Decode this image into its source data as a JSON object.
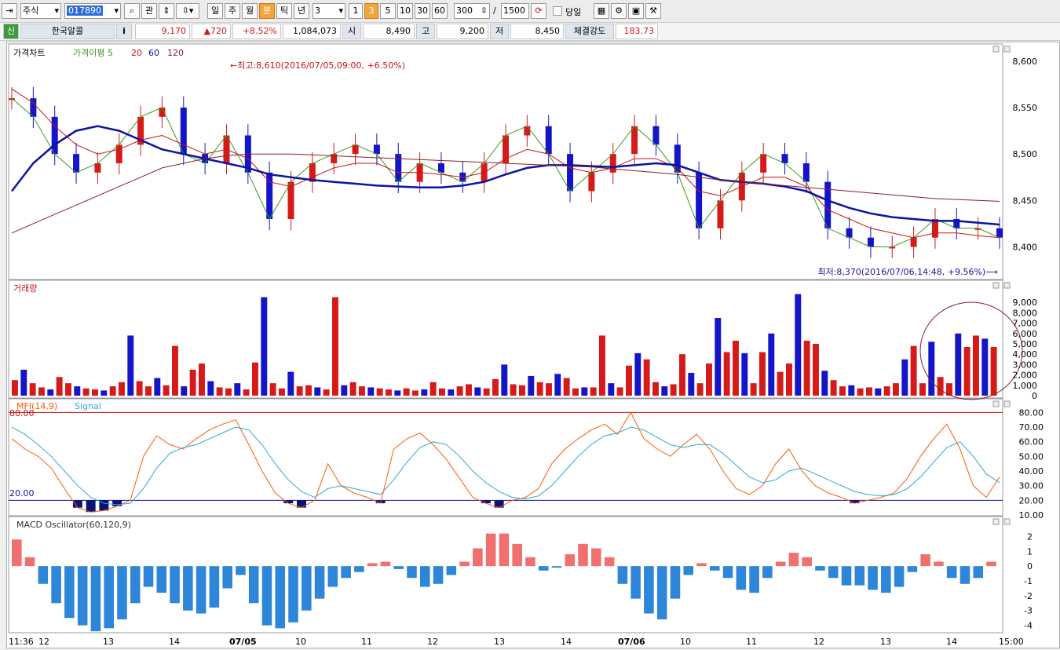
{
  "toolbar": {
    "market": "주식",
    "code": "017890",
    "btn_gwan": "관",
    "periods": [
      "일",
      "주",
      "월",
      "분",
      "틱",
      "년"
    ],
    "selected_period": "분",
    "interval_value": "3",
    "intervals": [
      "1",
      "3",
      "5",
      "10",
      "30",
      "60"
    ],
    "selected_interval": "3",
    "count_value": "300",
    "count_sep": "/",
    "count_max": "1500",
    "today_label": "당일"
  },
  "info": {
    "badge": "신",
    "name": "한국알콜",
    "i_button": "i",
    "price": "9,170",
    "change": "▲720",
    "change_pct": "+8.52%",
    "volume": "1,084,073",
    "open_label": "시",
    "open": "8,490",
    "high_label": "고",
    "high": "9,200",
    "low_label": "저",
    "low": "8,450",
    "strength_label": "체결강도",
    "strength": "183.73"
  },
  "price_panel": {
    "legend_title": "가격차트",
    "legend_ma5": "가격이평 5",
    "legend_ma20": "20",
    "legend_ma60": "60",
    "legend_ma120": "120",
    "high_annotation": "←최고:8,610(2016/07/05,09:00, +6.50%)",
    "low_annotation": "최저:8,370(2016/07/06,14:48, +9.56%)⟶",
    "y_ticks": [
      "8,600",
      "8,550",
      "8,500",
      "8,450",
      "8,400"
    ]
  },
  "volume_panel": {
    "legend": "거래량",
    "y_ticks": [
      "9,000",
      "8,000",
      "7,000",
      "6,000",
      "5,000",
      "4,000",
      "3,000",
      "2,000",
      "1,000",
      "0"
    ]
  },
  "mfi_panel": {
    "legend_mfi": "MFI(14,9)",
    "legend_signal": "Signal",
    "upper_level": "80.00",
    "lower_level": "20.00",
    "y_ticks": [
      "80.00",
      "70.00",
      "60.00",
      "50.00",
      "40.00",
      "30.00",
      "20.00",
      "10.00"
    ]
  },
  "macd_panel": {
    "legend": "MACD Oscillator(60,120,9)",
    "y_ticks": [
      "2",
      "1",
      "0",
      "-1",
      "-2",
      "-3",
      "-4"
    ]
  },
  "x_axis": {
    "labels": [
      "11:36",
      "12",
      "13",
      "14",
      "07/05",
      "10",
      "11",
      "12",
      "13",
      "14",
      "07/06",
      "10",
      "11",
      "12",
      "13",
      "14",
      "15:00"
    ]
  },
  "colors": {
    "up": "#d61a1a",
    "down": "#1414c8",
    "ma5": "#3a9a1a",
    "ma20": "#c81414",
    "ma60": "#0a14a0",
    "ma120": "#8c1c2c",
    "mfi": "#ff5a00",
    "signal": "#2aa8d8",
    "macd_pos": "#f07070",
    "macd_neg": "#2e86d8"
  },
  "chart_data": [
    {
      "type": "candlestick",
      "title": "가격차트",
      "ylim": [
        8370,
        8610
      ],
      "series": [
        {
          "name": "가격이평 5",
          "values": [
            8560,
            8540,
            8500,
            8480,
            8490,
            8510,
            8540,
            8550,
            8500,
            8490,
            8520,
            8480,
            8430,
            8470,
            8490,
            8500,
            8510,
            8500,
            8470,
            8490,
            8480,
            8470,
            8490,
            8520,
            8530,
            8500,
            8460,
            8480,
            8500,
            8530,
            8510,
            8480,
            8420,
            8450,
            8480,
            8500,
            8490,
            8470,
            8420,
            8410,
            8400,
            8400,
            8410,
            8430,
            8420,
            8420,
            8410
          ]
        },
        {
          "name": "20",
          "values": [
            8570,
            8555,
            8530,
            8510,
            8500,
            8505,
            8515,
            8520,
            8510,
            8500,
            8505,
            8495,
            8470,
            8465,
            8475,
            8485,
            8490,
            8490,
            8480,
            8480,
            8478,
            8475,
            8480,
            8495,
            8505,
            8500,
            8485,
            8480,
            8485,
            8495,
            8495,
            8485,
            8460,
            8455,
            8465,
            8475,
            8475,
            8465,
            8440,
            8430,
            8420,
            8415,
            8410,
            8415,
            8415,
            8412,
            8410
          ]
        },
        {
          "name": "60",
          "values": [
            8460,
            8490,
            8510,
            8525,
            8530,
            8525,
            8515,
            8505,
            8500,
            8495,
            8490,
            8485,
            8478,
            8475,
            8472,
            8470,
            8468,
            8466,
            8465,
            8464,
            8464,
            8466,
            8470,
            8478,
            8485,
            8488,
            8488,
            8487,
            8486,
            8488,
            8490,
            8488,
            8480,
            8472,
            8470,
            8468,
            8465,
            8460,
            8450,
            8442,
            8436,
            8432,
            8430,
            8428,
            8428,
            8426,
            8424
          ]
        },
        {
          "name": "120",
          "values": [
            8415,
            8425,
            8435,
            8445,
            8455,
            8465,
            8475,
            8485,
            8490,
            8495,
            8498,
            8500,
            8500,
            8500,
            8499,
            8498,
            8497,
            8496,
            8495,
            8494,
            8493,
            8492,
            8491,
            8490,
            8489,
            8488,
            8487,
            8486,
            8484,
            8482,
            8480,
            8478,
            8475,
            8472,
            8470,
            8468,
            8466,
            8464,
            8462,
            8460,
            8458,
            8456,
            8454,
            8452,
            8451,
            8450,
            8449
          ]
        }
      ]
    },
    {
      "type": "bar",
      "title": "거래량",
      "ylim": [
        0,
        10000
      ],
      "values": [
        1500,
        2500,
        1200,
        800,
        600,
        1800,
        1200,
        900,
        700,
        600,
        500,
        900,
        1300,
        5800,
        1400,
        900,
        1700,
        1000,
        4800,
        900,
        2500,
        3100,
        1400,
        800,
        700,
        1200,
        600,
        3200,
        9500,
        1200,
        700,
        2300,
        900,
        1000,
        800,
        600,
        9500,
        1000,
        1300,
        900,
        800,
        700,
        600,
        500,
        700,
        500,
        600,
        1300,
        700,
        600,
        900,
        1100,
        800,
        700,
        1600,
        3000,
        1100,
        1000,
        1900,
        1300,
        1200,
        2100,
        1700,
        700,
        800,
        800,
        5800,
        1200,
        800,
        2900,
        4100,
        3500,
        1300,
        900,
        1100,
        4000,
        2200,
        1200,
        3100,
        7500,
        4200,
        5300,
        4100,
        1200,
        4200,
        6000,
        2300,
        3100,
        9800,
        5300,
        5000,
        2400,
        1500,
        900,
        1000,
        700,
        800,
        700,
        900,
        1200,
        3500,
        4800,
        1200,
        5200,
        1800,
        1200,
        6000,
        4700,
        5800,
        5500,
        4700
      ]
    },
    {
      "type": "line",
      "title": "MFI(14,9)",
      "ylim": [
        10,
        85
      ],
      "series": [
        {
          "name": "MFI(14,9)",
          "values": [
            62,
            55,
            50,
            42,
            28,
            15,
            12,
            13,
            16,
            20,
            50,
            64,
            58,
            55,
            62,
            68,
            72,
            75,
            58,
            40,
            25,
            18,
            15,
            20,
            45,
            30,
            25,
            22,
            18,
            55,
            62,
            66,
            58,
            48,
            35,
            22,
            18,
            15,
            20,
            22,
            28,
            45,
            55,
            62,
            68,
            72,
            65,
            80,
            62,
            55,
            50,
            58,
            65,
            55,
            40,
            28,
            24,
            30,
            45,
            55,
            40,
            30,
            25,
            22,
            18,
            20,
            22,
            25,
            35,
            50,
            62,
            72,
            55,
            30,
            22,
            36
          ]
        },
        {
          "name": "Signal",
          "values": [
            70,
            65,
            58,
            50,
            40,
            30,
            22,
            18,
            17,
            18,
            28,
            42,
            52,
            56,
            58,
            62,
            66,
            70,
            68,
            58,
            45,
            34,
            26,
            22,
            28,
            30,
            28,
            26,
            24,
            34,
            46,
            56,
            60,
            58,
            50,
            40,
            32,
            26,
            22,
            21,
            23,
            30,
            40,
            50,
            58,
            64,
            66,
            70,
            68,
            63,
            58,
            56,
            58,
            58,
            52,
            44,
            36,
            32,
            34,
            40,
            42,
            38,
            34,
            30,
            26,
            24,
            23,
            24,
            28,
            36,
            46,
            56,
            60,
            50,
            38,
            32
          ]
        }
      ]
    },
    {
      "type": "bar",
      "title": "MACD Oscillator(60,120,9)",
      "ylim": [
        -4.5,
        2.5
      ],
      "values": [
        1.8,
        0.6,
        -1.2,
        -2.5,
        -3.5,
        -4.0,
        -4.4,
        -4.2,
        -3.6,
        -2.5,
        -1.4,
        -1.8,
        -2.5,
        -3.0,
        -3.2,
        -2.8,
        -1.5,
        -0.6,
        -2.5,
        -4.0,
        -4.2,
        -3.8,
        -3.0,
        -2.2,
        -1.4,
        -0.8,
        -0.4,
        0.2,
        0.3,
        -0.2,
        -0.8,
        -1.4,
        -1.2,
        -0.6,
        0.3,
        1.2,
        2.2,
        2.2,
        1.5,
        0.6,
        -0.3,
        -0.1,
        0.8,
        1.5,
        1.2,
        0.6,
        -1.2,
        -2.2,
        -3.2,
        -3.6,
        -2.2,
        -0.6,
        0.2,
        -0.3,
        -0.8,
        -1.6,
        -1.8,
        -0.8,
        0.3,
        0.9,
        0.6,
        -0.3,
        -0.8,
        -1.3,
        -1.3,
        -1.6,
        -1.8,
        -1.4,
        -0.4,
        0.8,
        0.3,
        -0.8,
        -1.2,
        -0.8,
        0.3
      ]
    }
  ]
}
